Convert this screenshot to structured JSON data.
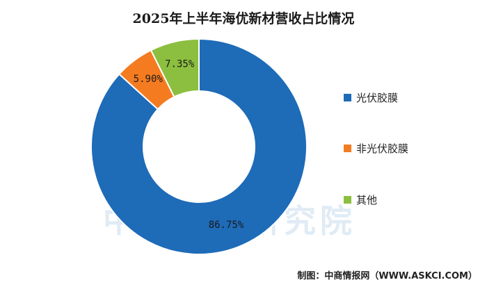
{
  "chart_data": {
    "type": "pie",
    "title": "2025年上半年海优新材营收占比情况",
    "categories": [
      "光伏胶膜",
      "非光伏胶膜",
      "其他"
    ],
    "values": [
      86.75,
      5.9,
      7.35
    ],
    "data_labels": [
      "86.75%",
      "5.90%",
      "7.35%"
    ],
    "colors": [
      "#1e6bb8",
      "#f47b20",
      "#8cbf3f"
    ],
    "donut": true,
    "legend": "right"
  },
  "watermark": "中商产业研究院",
  "source": "制图：中商情报网（WWW.ASKCI.COM）"
}
